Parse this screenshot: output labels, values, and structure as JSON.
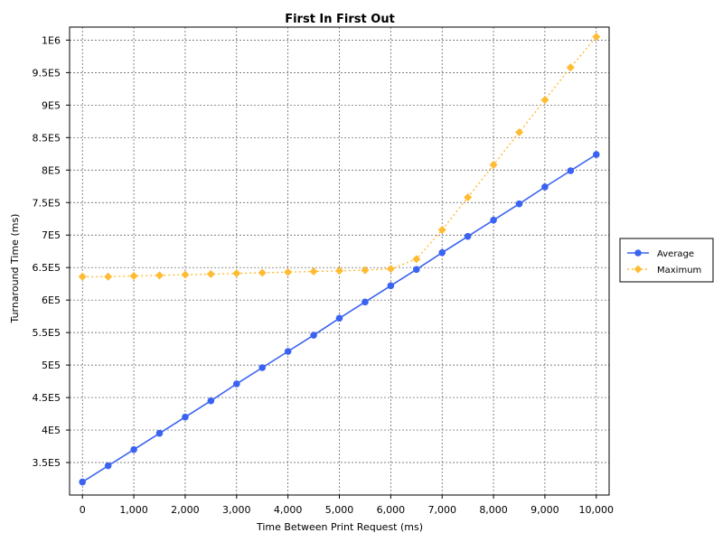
{
  "chart_data": {
    "type": "line",
    "title": "First In First Out",
    "xlabel": "Time Between Print Request (ms)",
    "ylabel": "Turnaround Time (ms)",
    "xlim": [
      -250,
      10250
    ],
    "ylim": [
      300000,
      1020000
    ],
    "x_ticks": [
      0,
      1000,
      2000,
      3000,
      4000,
      5000,
      6000,
      7000,
      8000,
      9000,
      10000
    ],
    "x_tick_labels": [
      "0",
      "1,000",
      "2,000",
      "3,000",
      "4,000",
      "5,000",
      "6,000",
      "7,000",
      "8,000",
      "9,000",
      "10,000"
    ],
    "y_ticks": [
      350000,
      400000,
      450000,
      500000,
      550000,
      600000,
      650000,
      700000,
      750000,
      800000,
      850000,
      900000,
      950000,
      1000000
    ],
    "y_tick_labels": [
      "3.5E5",
      "4E5",
      "4.5E5",
      "5E5",
      "5.5E5",
      "6E5",
      "6.5E5",
      "7E5",
      "7.5E5",
      "8E5",
      "8.5E5",
      "9E5",
      "9.5E5",
      "1E6"
    ],
    "grid": true,
    "legend_position": "right",
    "x": [
      0,
      500,
      1000,
      1500,
      2000,
      2500,
      3000,
      3500,
      4000,
      4500,
      5000,
      5500,
      6000,
      6500,
      7000,
      7500,
      8000,
      8500,
      9000,
      9500,
      10000
    ],
    "series": [
      {
        "name": "Average",
        "color": "#3b63f2",
        "marker": "circle",
        "line_style": "solid",
        "values": [
          320000,
          345000,
          370000,
          395000,
          420000,
          445000,
          471000,
          496000,
          521000,
          546000,
          572000,
          597000,
          622000,
          647000,
          673000,
          698000,
          723000,
          748000,
          774000,
          799000,
          824000
        ]
      },
      {
        "name": "Maximum",
        "color": "#ffbb33",
        "marker": "diamond",
        "line_style": "dotted",
        "values": [
          636000,
          636000,
          637000,
          638000,
          639000,
          640000,
          641000,
          642000,
          643000,
          644000,
          645000,
          646000,
          648000,
          663000,
          708000,
          758000,
          808000,
          858000,
          908000,
          958000,
          1005000
        ]
      }
    ]
  }
}
